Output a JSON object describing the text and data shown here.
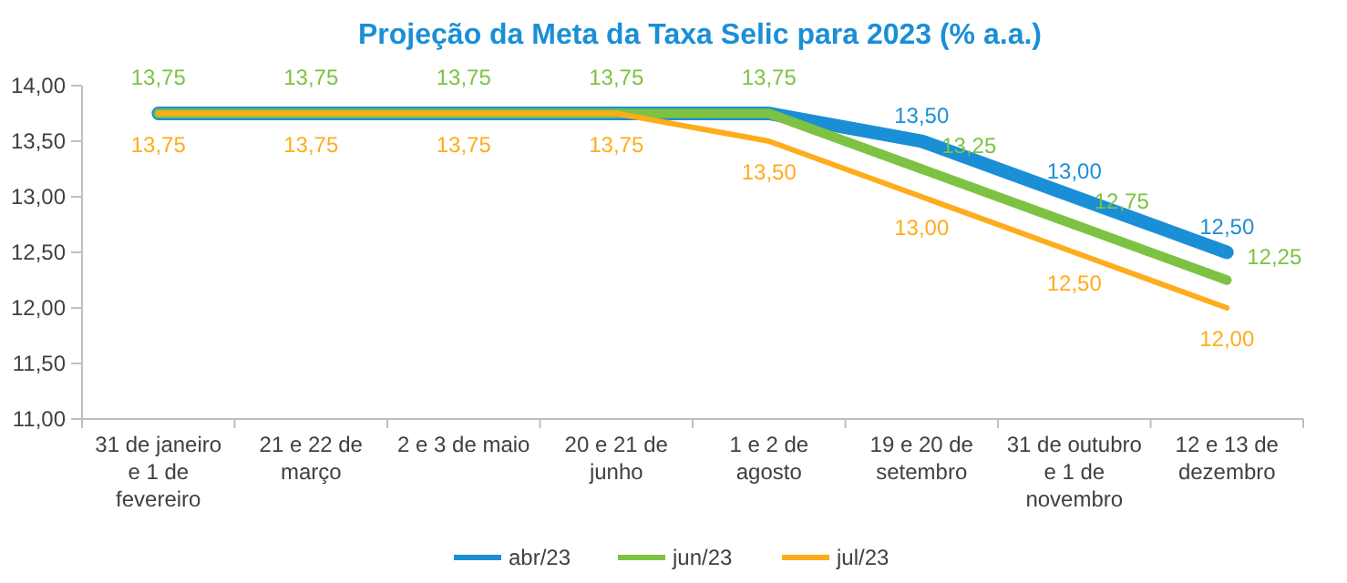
{
  "chart_data": {
    "type": "line",
    "title": "Projeção da Meta da Taxa Selic para 2023 (% a.a.)",
    "categories": [
      "31 de janeiro e 1 de fevereiro",
      "21 e 22 de março",
      "2 e 3 de maio",
      "20 e 21 de junho",
      "1 e 2 de agosto",
      "19 e 20 de setembro",
      "31 de outubro e 1 de novembro",
      "12 e 13 de dezembro"
    ],
    "series": [
      {
        "name": "abr/23",
        "color": "#1a8fd6",
        "values": [
          13.75,
          13.75,
          13.75,
          13.75,
          13.75,
          13.5,
          13,
          12.5
        ],
        "value_labels": [
          null,
          null,
          null,
          null,
          null,
          "13,50",
          "13,00",
          "12,50"
        ]
      },
      {
        "name": "jun/23",
        "color": "#7dc242",
        "values": [
          13.75,
          13.75,
          13.75,
          13.75,
          13.75,
          13.25,
          12.75,
          12.25
        ],
        "value_labels": [
          "13,75",
          "13,75",
          "13,75",
          "13,75",
          "13,75",
          "13,25",
          "12,75",
          "12,25"
        ]
      },
      {
        "name": "jul/23",
        "color": "#ffac1c",
        "values": [
          13.75,
          13.75,
          13.75,
          13.75,
          13.5,
          13,
          12.5,
          12
        ],
        "value_labels": [
          "13,75",
          "13,75",
          "13,75",
          "13,75",
          "13,50",
          "13,00",
          "12,50",
          "12,00"
        ]
      }
    ],
    "ylim": [
      11,
      14
    ],
    "yticks": [
      {
        "value": 11,
        "label": "11,00"
      },
      {
        "value": 11.5,
        "label": "11,50"
      },
      {
        "value": 12,
        "label": "12,00"
      },
      {
        "value": 12.5,
        "label": "12,50"
      },
      {
        "value": 13,
        "label": "13,00"
      },
      {
        "value": 13.5,
        "label": "13,50"
      },
      {
        "value": 14,
        "label": "14,00"
      }
    ],
    "grid": false,
    "legend": "bottom",
    "marker": "none",
    "line_style": "solid"
  }
}
